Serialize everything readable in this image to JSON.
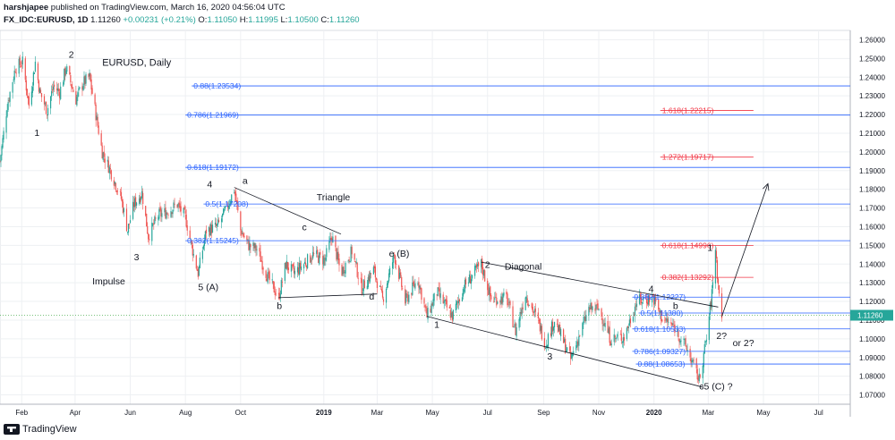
{
  "header": {
    "author_line": "harshjapee published on TradingView.com, March 16, 2020 04:56:04 UTC",
    "author": "harshjapee",
    "published_text": " published on TradingView.com, March 16, 2020 04:56:04 UTC",
    "symbol": "FX_IDC:EURUSD, 1D",
    "last": "1.11260",
    "change": "+0.00231 (+0.21%)",
    "open_label": "O:",
    "open": "1.11050",
    "high_label": "H:",
    "high": "1.11995",
    "low_label": "L:",
    "low": "1.10500",
    "close_label": "C:",
    "close": "1.11260"
  },
  "footer": {
    "brand": "TradingView"
  },
  "chart_data": {
    "type": "candlestick",
    "title": "EURUSD, Daily",
    "y_range": [
      1.065,
      1.265
    ],
    "y_ticks": [
      "1.26000",
      "1.25000",
      "1.24000",
      "1.23000",
      "1.22000",
      "1.21000",
      "1.20000",
      "1.19000",
      "1.18000",
      "1.17000",
      "1.16000",
      "1.15000",
      "1.14000",
      "1.13000",
      "1.12000",
      "1.11000",
      "1.10000",
      "1.09000",
      "1.08000",
      "1.07000"
    ],
    "y_tick_values": [
      1.26,
      1.25,
      1.24,
      1.23,
      1.22,
      1.21,
      1.2,
      1.19,
      1.18,
      1.17,
      1.16,
      1.15,
      1.14,
      1.13,
      1.12,
      1.11,
      1.1,
      1.09,
      1.08,
      1.07
    ],
    "x_ticks": [
      {
        "label": "Feb",
        "date": "2018-02-01"
      },
      {
        "label": "Apr",
        "date": "2018-04-01"
      },
      {
        "label": "Jun",
        "date": "2018-06-01"
      },
      {
        "label": "Aug",
        "date": "2018-08-01"
      },
      {
        "label": "Oct",
        "date": "2018-10-01"
      },
      {
        "label": "2019",
        "date": "2019-01-01"
      },
      {
        "label": "Mar",
        "date": "2019-03-01"
      },
      {
        "label": "May",
        "date": "2019-05-01"
      },
      {
        "label": "Jul",
        "date": "2019-07-01"
      },
      {
        "label": "Sep",
        "date": "2019-09-01"
      },
      {
        "label": "Nov",
        "date": "2019-11-01"
      },
      {
        "label": "2020",
        "date": "2020-01-01"
      },
      {
        "label": "Mar",
        "date": "2020-03-01"
      },
      {
        "label": "May",
        "date": "2020-05-01"
      },
      {
        "label": "Jul",
        "date": "2020-07-01"
      }
    ],
    "x_range": [
      "2018-01-08",
      "2020-08-05"
    ],
    "last_price_label": "1.11260",
    "last_price": 1.1126,
    "price_path": [
      [
        "2018-01-08",
        1.195
      ],
      [
        "2018-01-16",
        1.225
      ],
      [
        "2018-01-25",
        1.245
      ],
      [
        "2018-02-02",
        1.248
      ],
      [
        "2018-02-09",
        1.225
      ],
      [
        "2018-02-16",
        1.248
      ],
      [
        "2018-02-21",
        1.232
      ],
      [
        "2018-03-01",
        1.222
      ],
      [
        "2018-03-08",
        1.235
      ],
      [
        "2018-03-15",
        1.232
      ],
      [
        "2018-03-22",
        1.245
      ],
      [
        "2018-04-02",
        1.228
      ],
      [
        "2018-04-10",
        1.237
      ],
      [
        "2018-04-17",
        1.24
      ],
      [
        "2018-04-24",
        1.22
      ],
      [
        "2018-05-01",
        1.2
      ],
      [
        "2018-05-10",
        1.19
      ],
      [
        "2018-05-22",
        1.175
      ],
      [
        "2018-05-29",
        1.158
      ],
      [
        "2018-06-05",
        1.172
      ],
      [
        "2018-06-14",
        1.178
      ],
      [
        "2018-06-21",
        1.155
      ],
      [
        "2018-07-02",
        1.166
      ],
      [
        "2018-07-12",
        1.168
      ],
      [
        "2018-07-23",
        1.172
      ],
      [
        "2018-08-01",
        1.165
      ],
      [
        "2018-08-10",
        1.145
      ],
      [
        "2018-08-15",
        1.135
      ],
      [
        "2018-08-24",
        1.158
      ],
      [
        "2018-09-05",
        1.16
      ],
      [
        "2018-09-14",
        1.168
      ],
      [
        "2018-09-24",
        1.18
      ],
      [
        "2018-10-01",
        1.158
      ],
      [
        "2018-10-10",
        1.15
      ],
      [
        "2018-10-19",
        1.148
      ],
      [
        "2018-10-31",
        1.133
      ],
      [
        "2018-11-12",
        1.122
      ],
      [
        "2018-11-20",
        1.14
      ],
      [
        "2018-11-29",
        1.135
      ],
      [
        "2018-12-10",
        1.14
      ],
      [
        "2018-12-20",
        1.145
      ],
      [
        "2019-01-02",
        1.142
      ],
      [
        "2019-01-10",
        1.155
      ],
      [
        "2019-01-20",
        1.135
      ],
      [
        "2019-02-01",
        1.147
      ],
      [
        "2019-02-12",
        1.127
      ],
      [
        "2019-02-25",
        1.137
      ],
      [
        "2019-03-07",
        1.121
      ],
      [
        "2019-03-20",
        1.145
      ],
      [
        "2019-04-01",
        1.12
      ],
      [
        "2019-04-15",
        1.132
      ],
      [
        "2019-04-25",
        1.112
      ],
      [
        "2019-05-06",
        1.125
      ],
      [
        "2019-05-23",
        1.112
      ],
      [
        "2019-06-05",
        1.128
      ],
      [
        "2019-06-24",
        1.14
      ],
      [
        "2019-07-05",
        1.121
      ],
      [
        "2019-07-22",
        1.122
      ],
      [
        "2019-08-01",
        1.104
      ],
      [
        "2019-08-12",
        1.124
      ],
      [
        "2019-08-27",
        1.108
      ],
      [
        "2019-09-03",
        1.097
      ],
      [
        "2019-09-13",
        1.11
      ],
      [
        "2019-10-01",
        1.089
      ],
      [
        "2019-10-21",
        1.116
      ],
      [
        "2019-11-01",
        1.116
      ],
      [
        "2019-11-14",
        1.1
      ],
      [
        "2019-11-29",
        1.101
      ],
      [
        "2019-12-13",
        1.12
      ],
      [
        "2019-12-31",
        1.122
      ],
      [
        "2020-01-10",
        1.111
      ],
      [
        "2020-01-24",
        1.106
      ],
      [
        "2020-02-07",
        1.094
      ],
      [
        "2020-02-20",
        1.078
      ],
      [
        "2020-02-28",
        1.1
      ],
      [
        "2020-03-05",
        1.124
      ],
      [
        "2020-03-09",
        1.149
      ],
      [
        "2020-03-12",
        1.128
      ],
      [
        "2020-03-16",
        1.113
      ]
    ],
    "horizontal_levels": [
      {
        "label": "0.88(1.23534)",
        "label_start": "2018-08-08",
        "y": 1.2353,
        "color": "#2962ff",
        "start": "2018-08-08",
        "end": "2020-08-05"
      },
      {
        "label": "0.786(1.21969)",
        "label_start": "2018-08-01",
        "y": 1.2197,
        "color": "#2962ff",
        "start": "2018-08-01",
        "end": "2020-08-05"
      },
      {
        "label": "0.618(1.19172)",
        "label_start": "2018-08-01",
        "y": 1.1917,
        "color": "#2962ff",
        "start": "2018-08-01",
        "end": "2020-08-05"
      },
      {
        "label": "0.5(1.17208)",
        "label_start": "2018-08-21",
        "y": 1.1721,
        "color": "#2962ff",
        "start": "2018-08-21",
        "end": "2020-08-05"
      },
      {
        "label": "0.382(1.15245)",
        "label_start": "2018-08-01",
        "y": 1.1525,
        "color": "#2962ff",
        "start": "2018-08-01",
        "end": "2020-08-05"
      },
      {
        "label": "0.382(1.12227)",
        "label_start": "2019-12-08",
        "y": 1.1223,
        "color": "#2962ff",
        "start": "2019-12-08",
        "end": "2020-08-05"
      },
      {
        "label": "0.5(1.11380)",
        "label_start": "2019-12-15",
        "y": 1.1138,
        "color": "#2962ff",
        "start": "2019-12-15",
        "end": "2020-08-05"
      },
      {
        "label": "0.618(1.10533)",
        "label_start": "2019-12-08",
        "y": 1.1053,
        "color": "#2962ff",
        "start": "2019-12-08",
        "end": "2020-08-05"
      },
      {
        "label": "0.786(1.09327)",
        "label_start": "2019-12-08",
        "y": 1.0933,
        "color": "#2962ff",
        "start": "2019-12-08",
        "end": "2020-08-05"
      },
      {
        "label": "0.88(1.08653)",
        "label_start": "2019-12-12",
        "y": 1.0865,
        "color": "#2962ff",
        "start": "2019-12-12",
        "end": "2020-08-05"
      },
      {
        "label": "1.618(1.22215)",
        "label_start": "2020-01-08",
        "y": 1.2222,
        "color": "#f23645",
        "start": "2020-01-08",
        "end": "2020-04-20"
      },
      {
        "label": "1.272(1.19717)",
        "label_start": "2020-01-08",
        "y": 1.1972,
        "color": "#f23645",
        "start": "2020-01-08",
        "end": "2020-04-20"
      },
      {
        "label": "0.618(1.14996)",
        "label_start": "2020-01-08",
        "y": 1.15,
        "color": "#f23645",
        "start": "2020-01-08",
        "end": "2020-04-20"
      },
      {
        "label": "0.382(1.13292)",
        "label_start": "2020-01-08",
        "y": 1.1329,
        "color": "#f23645",
        "start": "2020-01-08",
        "end": "2020-04-20"
      }
    ],
    "trendlines": [
      {
        "from": [
          "2018-09-24",
          1.181
        ],
        "to": [
          "2019-01-20",
          1.156
        ]
      },
      {
        "from": [
          "2018-11-12",
          1.122
        ],
        "to": [
          "2019-03-01",
          1.124
        ]
      },
      {
        "from": [
          "2019-06-24",
          1.141
        ],
        "to": [
          "2020-03-12",
          1.117
        ]
      },
      {
        "from": [
          "2019-04-25",
          1.112
        ],
        "to": [
          "2020-02-25",
          1.074
        ]
      },
      {
        "from": [
          "2020-03-16",
          1.112
        ],
        "to": [
          "2020-05-06",
          1.183
        ]
      }
    ],
    "annotations": [
      {
        "text": "EURUSD, Daily",
        "date": "2018-05-01",
        "y": 1.246
      },
      {
        "text": "2",
        "date": "2018-03-25",
        "y": 1.2505
      },
      {
        "text": "1",
        "date": "2018-02-15",
        "y": 1.2085
      },
      {
        "text": "4",
        "date": "2018-08-25",
        "y": 1.181
      },
      {
        "text": "3",
        "date": "2018-06-05",
        "y": 1.142
      },
      {
        "text": "Impulse",
        "date": "2018-04-20",
        "y": 1.129
      },
      {
        "text": "5 (A)",
        "date": "2018-08-15",
        "y": 1.126
      },
      {
        "text": "a",
        "date": "2018-10-03",
        "y": 1.183
      },
      {
        "text": "Triangle",
        "date": "2018-12-24",
        "y": 1.174
      },
      {
        "text": "c",
        "date": "2018-12-08",
        "y": 1.158
      },
      {
        "text": "e (B)",
        "date": "2019-03-14",
        "y": 1.144
      },
      {
        "text": "b",
        "date": "2018-11-10",
        "y": 1.116
      },
      {
        "text": "d",
        "date": "2019-02-20",
        "y": 1.121
      },
      {
        "text": "2",
        "date": "2019-06-28",
        "y": 1.138
      },
      {
        "text": "Diagonal",
        "date": "2019-07-20",
        "y": 1.137
      },
      {
        "text": "1",
        "date": "2019-05-03",
        "y": 1.106
      },
      {
        "text": "3",
        "date": "2019-09-05",
        "y": 1.089
      },
      {
        "text": "4",
        "date": "2019-12-26",
        "y": 1.125
      },
      {
        "text": "b",
        "date": "2020-01-22",
        "y": 1.116
      },
      {
        "text": "1",
        "date": "2020-02-29",
        "y": 1.147
      },
      {
        "text": "2?",
        "date": "2020-03-10",
        "y": 1.1
      },
      {
        "text": "or 2?",
        "date": "2020-03-28",
        "y": 1.096
      },
      {
        "text": "c5 (C) ?",
        "date": "2020-02-20",
        "y": 1.073
      }
    ]
  }
}
